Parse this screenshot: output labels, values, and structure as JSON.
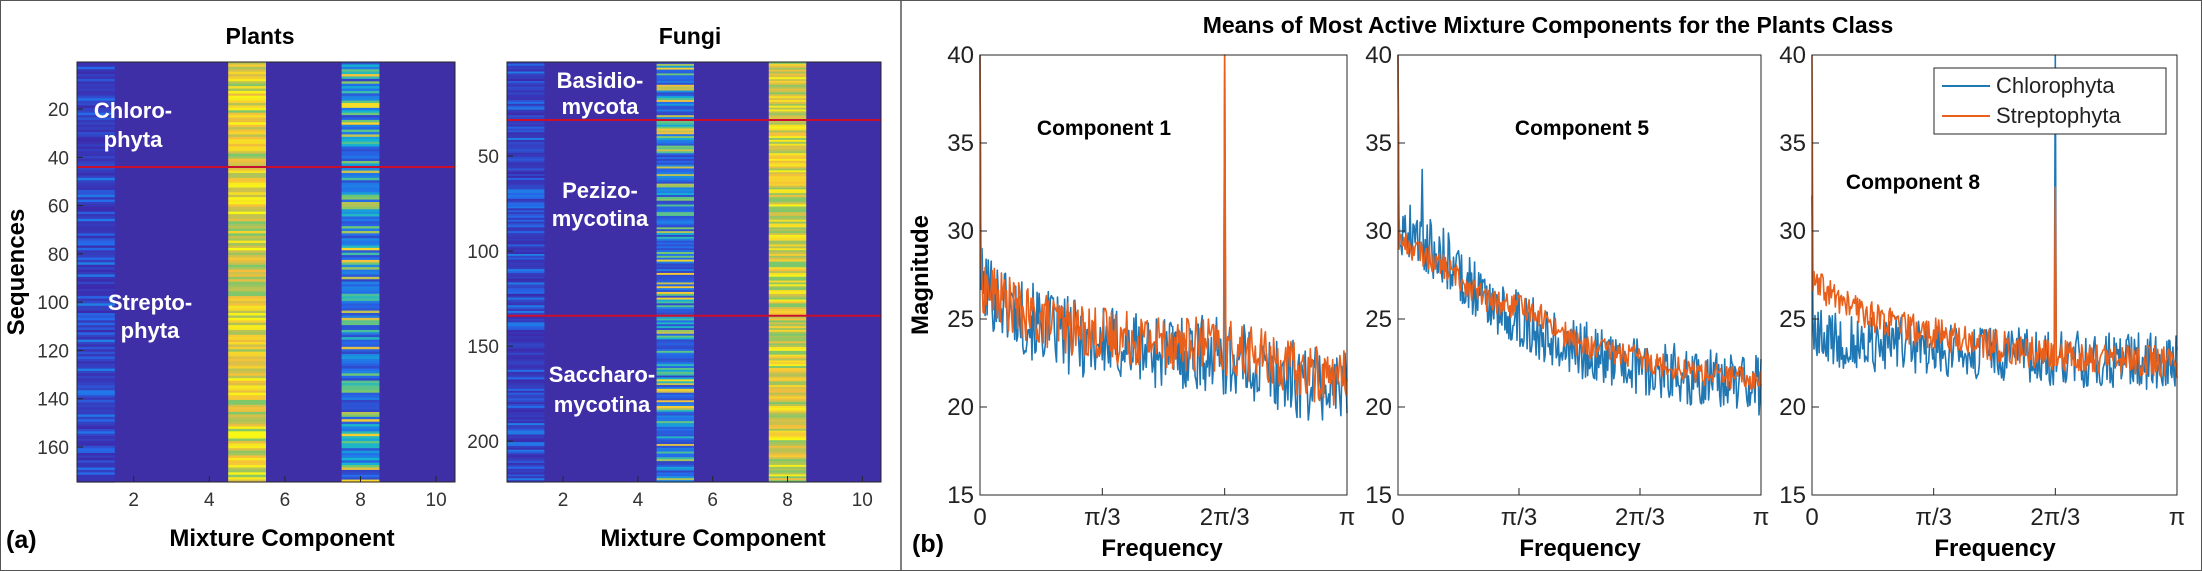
{
  "panel_labels": {
    "a": "(a)",
    "b": "(b)"
  },
  "figure_b_title": "Means of Most Active Mixture Components for the Plants Class",
  "colors": {
    "heat_bg": "#3F2FA6",
    "divider": "#C8102E",
    "chlorophyta": "#1F77B4",
    "streptophyta": "#E8601C"
  },
  "chart_data": [
    {
      "type": "heatmap",
      "title": "Plants",
      "xlabel": "Mixture Component",
      "ylabel": "Sequences",
      "x_ticks": [
        "2",
        "4",
        "6",
        "8",
        "10"
      ],
      "y_ticks": [
        "20",
        "40",
        "60",
        "80",
        "100",
        "120",
        "140",
        "160"
      ],
      "xlim": [
        0.5,
        10.5
      ],
      "ylim": [
        1,
        174
      ],
      "active_columns": [
        1,
        5,
        8
      ],
      "brightest_column": 5,
      "class_boundaries": [
        44
      ],
      "regions": [
        {
          "label_lines": [
            "Chloro-",
            "phyta"
          ],
          "rows": [
            1,
            44
          ]
        },
        {
          "label_lines": [
            "Strepto-",
            "phyta"
          ],
          "rows": [
            45,
            174
          ]
        }
      ]
    },
    {
      "type": "heatmap",
      "title": "Fungi",
      "xlabel": "Mixture Component",
      "ylabel": "",
      "x_ticks": [
        "2",
        "4",
        "6",
        "8",
        "10"
      ],
      "y_ticks": [
        "50",
        "100",
        "150",
        "200"
      ],
      "xlim": [
        0.5,
        10.5
      ],
      "ylim": [
        1,
        221
      ],
      "active_columns": [
        1,
        5,
        8
      ],
      "brightest_column": 8,
      "class_boundaries": [
        31,
        134
      ],
      "regions": [
        {
          "label_lines": [
            "Basidio-",
            "mycota"
          ],
          "rows": [
            1,
            31
          ]
        },
        {
          "label_lines": [
            "Pezizo-",
            "mycotina"
          ],
          "rows": [
            32,
            134
          ]
        },
        {
          "label_lines": [
            "Saccharo-",
            "mycotina"
          ],
          "rows": [
            135,
            221
          ]
        }
      ]
    },
    {
      "type": "line",
      "title": "Component 1",
      "xlabel": "Frequency",
      "ylabel": "Magnitude",
      "x_ticks": [
        "0",
        "π/3",
        "2π/3",
        "π"
      ],
      "y_ticks": [
        "15",
        "20",
        "25",
        "30",
        "35",
        "40"
      ],
      "xlim": [
        0,
        3.1416
      ],
      "ylim": [
        15,
        40
      ],
      "series": [
        {
          "name": "Chlorophyta",
          "trend_y": [
            27.0,
            25.0,
            24.0,
            23.5,
            23.2,
            23.0,
            22.3,
            21.5,
            21.0
          ],
          "noise": 2.2,
          "spikes": [
            {
              "x": 0.0,
              "y": 40
            },
            {
              "x": 2.094,
              "y": 40
            }
          ]
        },
        {
          "name": "Streptophyta",
          "trend_y": [
            27.0,
            25.2,
            24.5,
            24.0,
            23.8,
            23.5,
            23.0,
            22.0,
            21.6
          ],
          "noise": 1.6,
          "spikes": [
            {
              "x": 0.0,
              "y": 40
            },
            {
              "x": 2.094,
              "y": 40
            }
          ]
        }
      ]
    },
    {
      "type": "line",
      "title": "Component 5",
      "xlabel": "Frequency",
      "ylabel": "",
      "x_ticks": [
        "0",
        "π/3",
        "2π/3",
        "π"
      ],
      "y_ticks": [
        "15",
        "20",
        "25",
        "30",
        "35",
        "40"
      ],
      "xlim": [
        0,
        3.1416
      ],
      "ylim": [
        15,
        40
      ],
      "series": [
        {
          "name": "Chlorophyta",
          "trend_y": [
            30.5,
            28.5,
            26.0,
            24.5,
            23.3,
            22.5,
            22.0,
            21.5,
            21.2
          ],
          "noise": 1.7,
          "spikes": [
            {
              "x": 0.0,
              "y": 40
            },
            {
              "x": 0.21,
              "y": 33.5
            }
          ]
        },
        {
          "name": "Streptophyta",
          "trend_y": [
            29.5,
            28.0,
            26.0,
            25.5,
            23.5,
            23.0,
            22.3,
            21.8,
            21.5
          ],
          "noise": 0.7,
          "spikes": [
            {
              "x": 0.0,
              "y": 40
            }
          ]
        }
      ]
    },
    {
      "type": "line",
      "title": "Component 8",
      "xlabel": "Frequency",
      "ylabel": "",
      "x_ticks": [
        "0",
        "π/3",
        "2π/3",
        "π"
      ],
      "y_ticks": [
        "15",
        "20",
        "25",
        "30",
        "35",
        "40"
      ],
      "xlim": [
        0,
        3.1416
      ],
      "ylim": [
        15,
        40
      ],
      "series": [
        {
          "name": "Chlorophyta",
          "trend_y": [
            24.0,
            23.6,
            23.5,
            23.2,
            23.0,
            22.8,
            22.7,
            22.6,
            22.6
          ],
          "noise": 1.6,
          "spikes": [
            {
              "x": 0.0,
              "y": 32
            },
            {
              "x": 2.094,
              "y": 40
            }
          ]
        },
        {
          "name": "Streptophyta",
          "trend_y": [
            27.0,
            25.5,
            24.5,
            24.0,
            23.5,
            23.0,
            22.8,
            22.7,
            22.5
          ],
          "noise": 0.9,
          "spikes": [
            {
              "x": 0.0,
              "y": 40
            },
            {
              "x": 2.094,
              "y": 32.5
            }
          ]
        }
      ],
      "legend": {
        "entries": [
          "Chlorophyta",
          "Streptophyta"
        ],
        "placement": "top-right"
      }
    }
  ]
}
